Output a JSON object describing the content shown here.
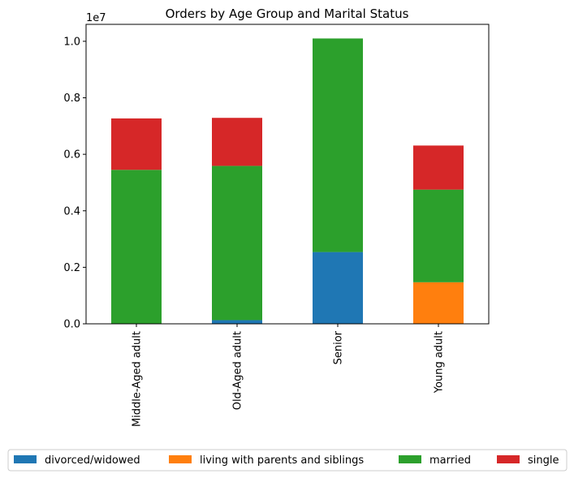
{
  "chart_data": {
    "type": "bar",
    "stacked": true,
    "title": "Orders by Age Group and Marital Status",
    "xlabel": "",
    "ylabel": "",
    "y_offset_label": "1e7",
    "categories": [
      "Middle-Aged adult",
      "Old-Aged adult",
      "Senior",
      "Young adult"
    ],
    "series": [
      {
        "name": "divorced/widowed",
        "color": "#1f77b4",
        "values": [
          0,
          0.013,
          0.254,
          0
        ]
      },
      {
        "name": "living with parents and siblings",
        "color": "#ff7f0e",
        "values": [
          0,
          0,
          0,
          0.147
        ]
      },
      {
        "name": "married",
        "color": "#2ca02c",
        "values": [
          0.545,
          0.546,
          0.756,
          0.328
        ]
      },
      {
        "name": "single",
        "color": "#d62728",
        "values": [
          0.182,
          0.17,
          0,
          0.156
        ]
      }
    ],
    "ylim": [
      0,
      1.06
    ],
    "yticks": [
      0.0,
      0.2,
      0.4,
      0.6,
      0.8,
      1.0
    ],
    "ytick_labels": [
      "0.0",
      "0.2",
      "0.4",
      "0.6",
      "0.8",
      "1.0"
    ],
    "grid": false,
    "legend_position": "bottom"
  }
}
